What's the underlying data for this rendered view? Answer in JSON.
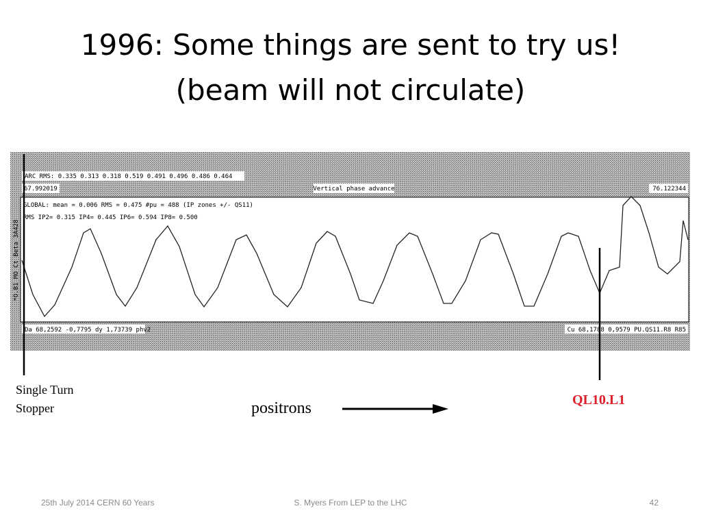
{
  "title": {
    "line1": "1996: Some things are sent to try us!",
    "line2": "(beam will not circulate)"
  },
  "screenshot": {
    "arc_rms": "ARC RMS:  0.335  0.313  0.318  0.519  0.491  0.496  0.486  0.464",
    "left_value": "67.992019",
    "plot_title": "Vertical phase advance",
    "right_value": "76.122344",
    "global": "GLOBAL: mean =   0.006   RMS =   0.475   #pu = 488 (IP zones +/- QS11)",
    "rms_ip": "RMS IP2= 0.315   IP4= 0.445   IP6= 0.594   IP8= 0.500",
    "y_label": "*O.B1 MO Ct Beta 3A428",
    "bottom_left": "Da 68,2592 -0,7795 dy 1,73739  phv2",
    "bottom_right": "Cu 68,1788  0,9579 PU.QS11.R8  R85"
  },
  "annotations": {
    "stopper_line1": "Single Turn",
    "stopper_line2": "Stopper",
    "positrons": "positrons",
    "quad": "QL10.L1"
  },
  "footer": {
    "left": "25th July 2014 CERN 60 Years",
    "center": "S. Myers From LEP to the LHC",
    "page": "42"
  }
}
